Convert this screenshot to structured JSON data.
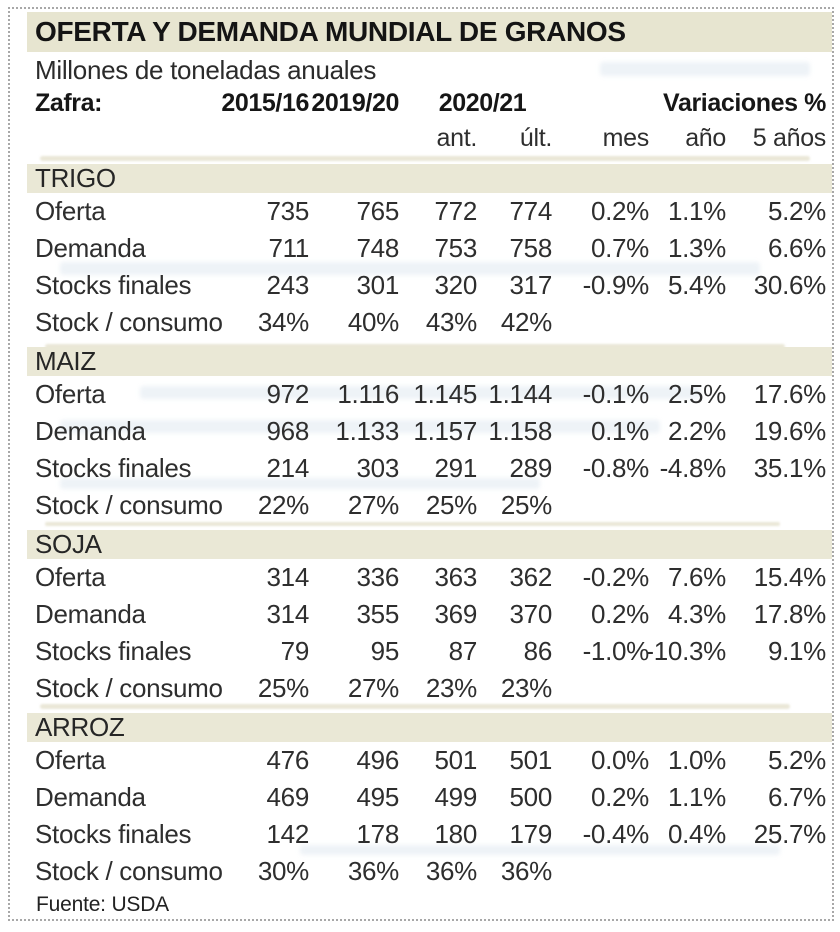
{
  "chart_data": {
    "type": "table",
    "title": "OFERTA Y DEMANDA MUNDIAL DE GRANOS",
    "subtitle": "Millones de toneladas anuales",
    "source": "Fuente: USDA",
    "header": {
      "zafra": "Zafra:",
      "seasons": [
        "2015/16",
        "2019/20",
        "2020/21"
      ],
      "variaciones": "Variaciones %",
      "subcolumns": [
        "ant.",
        "últ.",
        "mes",
        "año",
        "5 años"
      ]
    },
    "columns": [
      "Zafra",
      "2015/16",
      "2019/20",
      "2020/21 ant.",
      "2020/21 últ.",
      "Variación mes",
      "Variación año",
      "Variación 5 años"
    ],
    "sections": [
      {
        "name": "TRIGO",
        "rows": [
          {
            "label": "Oferta",
            "values": [
              "735",
              "765",
              "772",
              "774",
              "0.2%",
              "1.1%",
              "5.2%"
            ]
          },
          {
            "label": "Demanda",
            "values": [
              "711",
              "748",
              "753",
              "758",
              "0.7%",
              "1.3%",
              "6.6%"
            ]
          },
          {
            "label": "Stocks finales",
            "values": [
              "243",
              "301",
              "320",
              "317",
              "-0.9%",
              "5.4%",
              "30.6%"
            ]
          },
          {
            "label": "Stock / consumo",
            "values": [
              "34%",
              "40%",
              "43%",
              "42%",
              "",
              "",
              ""
            ]
          }
        ]
      },
      {
        "name": "MAIZ",
        "rows": [
          {
            "label": "Oferta",
            "values": [
              "972",
              "1.116",
              "1.145",
              "1.144",
              "-0.1%",
              "2.5%",
              "17.6%"
            ]
          },
          {
            "label": "Demanda",
            "values": [
              "968",
              "1.133",
              "1.157",
              "1.158",
              "0.1%",
              "2.2%",
              "19.6%"
            ]
          },
          {
            "label": "Stocks finales",
            "values": [
              "214",
              "303",
              "291",
              "289",
              "-0.8%",
              "-4.8%",
              "35.1%"
            ]
          },
          {
            "label": "Stock / consumo",
            "values": [
              "22%",
              "27%",
              "25%",
              "25%",
              "",
              "",
              ""
            ]
          }
        ]
      },
      {
        "name": "SOJA",
        "rows": [
          {
            "label": "Oferta",
            "values": [
              "314",
              "336",
              "363",
              "362",
              "-0.2%",
              "7.6%",
              "15.4%"
            ]
          },
          {
            "label": "Demanda",
            "values": [
              "314",
              "355",
              "369",
              "370",
              "0.2%",
              "4.3%",
              "17.8%"
            ]
          },
          {
            "label": "Stocks finales",
            "values": [
              "79",
              "95",
              "87",
              "86",
              "-1.0%",
              "-10.3%",
              "9.1%"
            ]
          },
          {
            "label": "Stock / consumo",
            "values": [
              "25%",
              "27%",
              "23%",
              "23%",
              "",
              "",
              ""
            ]
          }
        ]
      },
      {
        "name": "ARROZ",
        "rows": [
          {
            "label": "Oferta",
            "values": [
              "476",
              "496",
              "501",
              "501",
              "0.0%",
              "1.0%",
              "5.2%"
            ]
          },
          {
            "label": "Demanda",
            "values": [
              "469",
              "495",
              "499",
              "500",
              "0.2%",
              "1.1%",
              "6.7%"
            ]
          },
          {
            "label": "Stocks finales",
            "values": [
              "142",
              "178",
              "180",
              "179",
              "-0.4%",
              "0.4%",
              "25.7%"
            ]
          },
          {
            "label": "Stock / consumo",
            "values": [
              "30%",
              "36%",
              "36%",
              "36%",
              "",
              "",
              ""
            ]
          }
        ]
      }
    ],
    "colors": {
      "title_band": "#e7e5d0",
      "section_band": "#eae8d6",
      "text": "#242424",
      "border_dots": "#a8a8a8"
    }
  }
}
